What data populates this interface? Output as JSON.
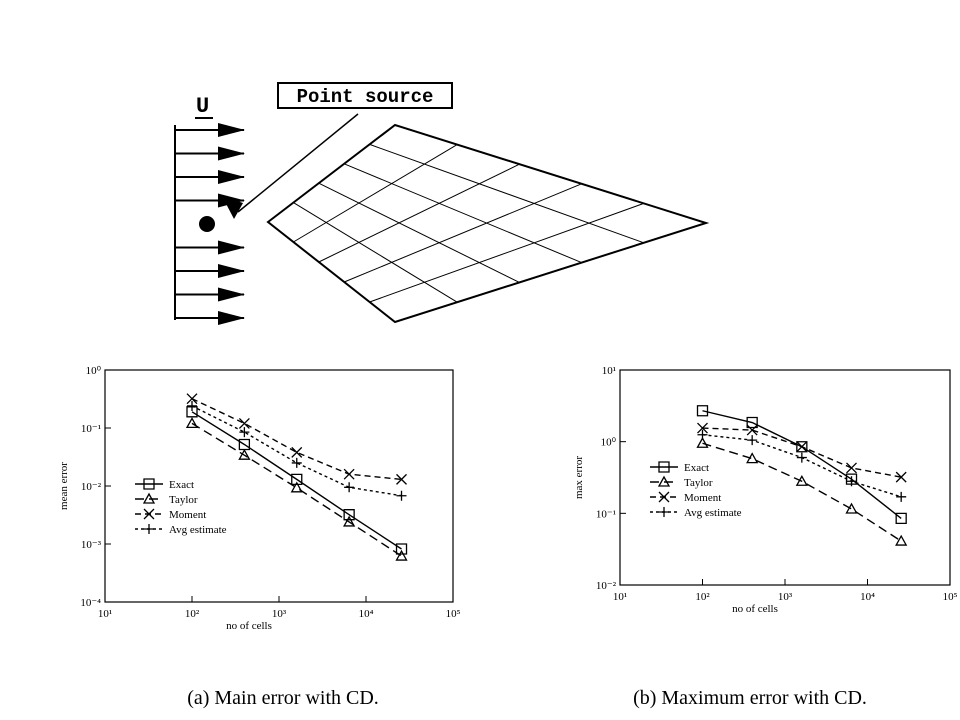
{
  "diagram": {
    "flow_label": "U",
    "source_label": "Point source"
  },
  "chart_data": [
    {
      "type": "line",
      "caption": "(a)  Main error with CD.",
      "x_label": "no of cells",
      "y_label": "mean error",
      "xscale": "log",
      "yscale": "log",
      "legend": "lower left",
      "xlim": [
        10,
        100000
      ],
      "xticks": [
        {
          "value": 10,
          "label": "10¹"
        },
        {
          "value": 100,
          "label": "10²"
        },
        {
          "value": 1000,
          "label": "10³"
        },
        {
          "value": 10000,
          "label": "10⁴"
        },
        {
          "value": 100000,
          "label": "10⁵"
        }
      ],
      "ylim": [
        0.0001,
        1
      ],
      "yticks": [
        {
          "value": 0.0001,
          "label": "10⁻⁴"
        },
        {
          "value": 0.001,
          "label": "10⁻³"
        },
        {
          "value": 0.01,
          "label": "10⁻²"
        },
        {
          "value": 0.1,
          "label": "10⁻¹"
        },
        {
          "value": 1,
          "label": "10⁰"
        }
      ],
      "x": [
        100,
        400,
        1600,
        6400,
        25600
      ],
      "series": [
        {
          "name": "Exact",
          "color": "#000000",
          "marker": "square",
          "dash": "solid",
          "values": [
            0.19,
            0.052,
            0.013,
            0.0032,
            0.00082
          ]
        },
        {
          "name": "Taylor",
          "color": "#000000",
          "marker": "triangle",
          "dash": "long",
          "values": [
            0.12,
            0.034,
            0.0093,
            0.0024,
            0.00062
          ]
        },
        {
          "name": "Moment",
          "color": "#000000",
          "marker": "cross",
          "dash": "medium",
          "values": [
            0.32,
            0.12,
            0.038,
            0.016,
            0.013
          ]
        },
        {
          "name": "Avg estimate",
          "color": "#000000",
          "marker": "plus",
          "dash": "short",
          "values": [
            0.24,
            0.085,
            0.025,
            0.0095,
            0.0068
          ]
        }
      ]
    },
    {
      "type": "line",
      "caption": "(b)  Maximum error with CD.",
      "x_label": "no of cells",
      "y_label": "max error",
      "xscale": "log",
      "yscale": "log",
      "legend": "lower left",
      "xlim": [
        10,
        100000
      ],
      "xticks": [
        {
          "value": 10,
          "label": "10¹"
        },
        {
          "value": 100,
          "label": "10²"
        },
        {
          "value": 1000,
          "label": "10³"
        },
        {
          "value": 10000,
          "label": "10⁴"
        },
        {
          "value": 100000,
          "label": "10⁵"
        }
      ],
      "ylim": [
        0.01,
        10
      ],
      "yticks": [
        {
          "value": 0.01,
          "label": "10⁻²"
        },
        {
          "value": 0.1,
          "label": "10⁻¹"
        },
        {
          "value": 1,
          "label": "10⁰"
        },
        {
          "value": 10,
          "label": "10¹"
        }
      ],
      "x": [
        100,
        400,
        1600,
        6400,
        25600
      ],
      "series": [
        {
          "name": "Exact",
          "color": "#000000",
          "marker": "square",
          "dash": "solid",
          "values": [
            2.7,
            1.85,
            0.85,
            0.3,
            0.085
          ]
        },
        {
          "name": "Taylor",
          "color": "#000000",
          "marker": "triangle",
          "dash": "long",
          "values": [
            0.95,
            0.58,
            0.28,
            0.115,
            0.041
          ]
        },
        {
          "name": "Moment",
          "color": "#000000",
          "marker": "cross",
          "dash": "medium",
          "values": [
            1.55,
            1.45,
            0.85,
            0.43,
            0.32
          ]
        },
        {
          "name": "Avg estimate",
          "color": "#000000",
          "marker": "plus",
          "dash": "short",
          "values": [
            1.25,
            1.05,
            0.6,
            0.28,
            0.17
          ]
        }
      ]
    }
  ]
}
